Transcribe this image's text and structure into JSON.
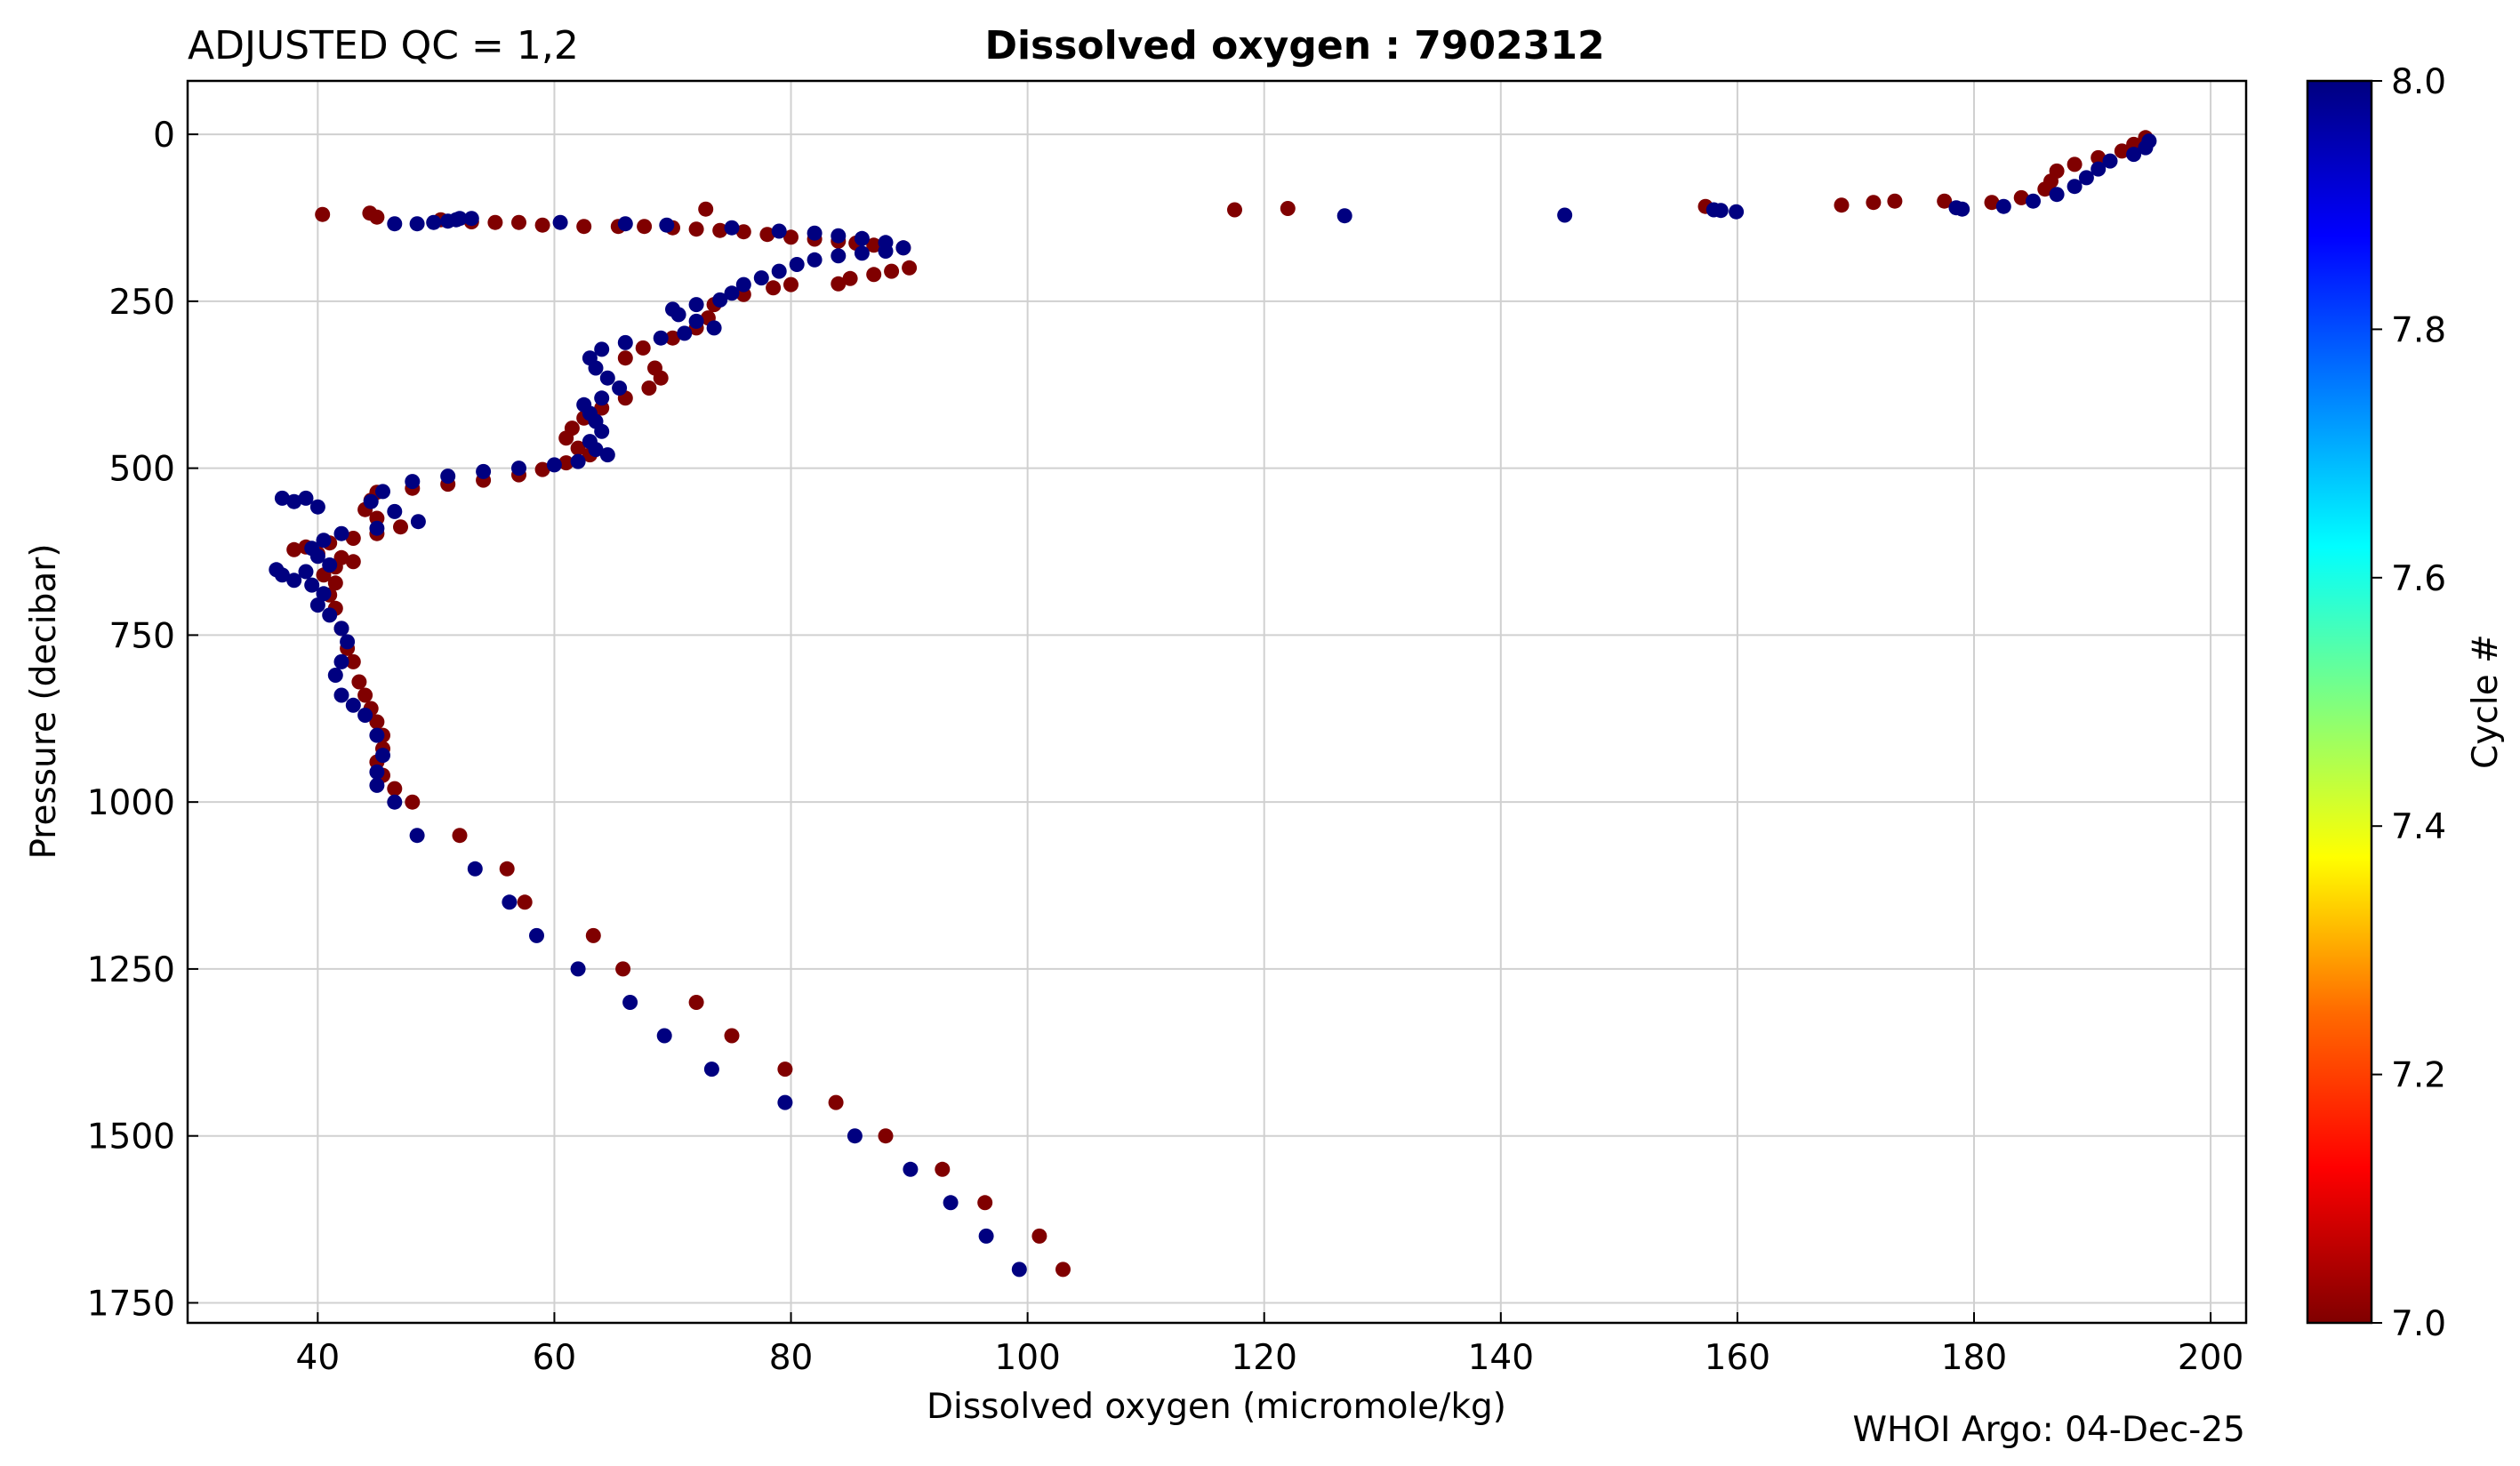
{
  "header": {
    "qc_label": "ADJUSTED QC = 1,2",
    "title": "Dissolved oxygen : 7902312"
  },
  "footer": {
    "credit": "WHOI Argo: 04-Dec-25"
  },
  "colorbar": {
    "label": "Cycle #",
    "min": 7.0,
    "max": 8.0,
    "ticks": [
      "7.0",
      "7.2",
      "7.4",
      "7.6",
      "7.8",
      "8.0"
    ],
    "colormap": "jet"
  },
  "chart_data": {
    "type": "scatter",
    "xlabel": "Dissolved oxygen  (micromole/kg)",
    "ylabel": "Pressure  (decibar)",
    "xlim": [
      29,
      203
    ],
    "ylim": [
      1780,
      -80
    ],
    "y_inverted": true,
    "x_ticks": [
      40,
      60,
      80,
      100,
      120,
      140,
      160,
      180,
      200
    ],
    "y_ticks": [
      0,
      250,
      500,
      750,
      1000,
      1250,
      1500,
      1750
    ],
    "grid": true,
    "series": [
      {
        "cycle": 7,
        "color": "#800000",
        "points": [
          [
            194.5,
            5
          ],
          [
            193.5,
            15
          ],
          [
            192.5,
            25
          ],
          [
            190.5,
            35
          ],
          [
            188.5,
            45
          ],
          [
            187.0,
            55
          ],
          [
            186.5,
            70
          ],
          [
            186.0,
            82
          ],
          [
            184.0,
            95
          ],
          [
            181.5,
            102
          ],
          [
            177.5,
            100
          ],
          [
            173.3,
            100
          ],
          [
            171.5,
            102
          ],
          [
            168.8,
            106
          ],
          [
            157.3,
            108
          ],
          [
            122.0,
            111
          ],
          [
            117.5,
            113
          ],
          [
            72.8,
            112
          ],
          [
            40.4,
            120
          ],
          [
            44.4,
            118
          ],
          [
            45.0,
            124
          ],
          [
            50.4,
            128
          ],
          [
            53.0,
            131
          ],
          [
            55.0,
            132
          ],
          [
            57.0,
            132
          ],
          [
            59.0,
            136
          ],
          [
            62.5,
            138
          ],
          [
            65.4,
            138
          ],
          [
            67.6,
            138
          ],
          [
            70.0,
            140
          ],
          [
            72.0,
            142
          ],
          [
            74.0,
            144
          ],
          [
            76.0,
            146
          ],
          [
            78.0,
            150
          ],
          [
            80.0,
            154
          ],
          [
            82.0,
            157
          ],
          [
            84.0,
            160
          ],
          [
            85.5,
            163
          ],
          [
            87.0,
            166
          ],
          [
            89.5,
            170
          ],
          [
            90.0,
            200
          ],
          [
            88.5,
            205
          ],
          [
            87.0,
            210
          ],
          [
            85.0,
            216
          ],
          [
            84.0,
            224
          ],
          [
            80.0,
            225
          ],
          [
            78.5,
            230
          ],
          [
            76.0,
            240
          ],
          [
            73.5,
            255
          ],
          [
            73.0,
            275
          ],
          [
            72.0,
            290
          ],
          [
            70.0,
            305
          ],
          [
            67.5,
            320
          ],
          [
            66.0,
            335
          ],
          [
            68.5,
            350
          ],
          [
            69.0,
            365
          ],
          [
            68.0,
            380
          ],
          [
            66.0,
            395
          ],
          [
            64.0,
            410
          ],
          [
            62.5,
            425
          ],
          [
            61.5,
            440
          ],
          [
            61.0,
            455
          ],
          [
            62.0,
            470
          ],
          [
            63.0,
            480
          ],
          [
            61.0,
            492
          ],
          [
            59.0,
            502
          ],
          [
            57.0,
            510
          ],
          [
            54.0,
            518
          ],
          [
            51.0,
            524
          ],
          [
            48.0,
            530
          ],
          [
            45.0,
            536
          ],
          [
            44.5,
            548
          ],
          [
            44.0,
            562
          ],
          [
            45.0,
            575
          ],
          [
            47.0,
            588
          ],
          [
            45.0,
            598
          ],
          [
            43.0,
            605
          ],
          [
            41.0,
            612
          ],
          [
            39.0,
            618
          ],
          [
            38.0,
            622
          ],
          [
            40.0,
            628
          ],
          [
            42.0,
            634
          ],
          [
            43.0,
            640
          ],
          [
            41.5,
            648
          ],
          [
            40.5,
            660
          ],
          [
            41.5,
            672
          ],
          [
            41.0,
            690
          ],
          [
            41.5,
            710
          ],
          [
            42.0,
            740
          ],
          [
            42.5,
            770
          ],
          [
            43.0,
            790
          ],
          [
            43.5,
            820
          ],
          [
            44.0,
            840
          ],
          [
            44.5,
            860
          ],
          [
            45.0,
            880
          ],
          [
            45.5,
            900
          ],
          [
            45.5,
            920
          ],
          [
            45.0,
            940
          ],
          [
            45.5,
            960
          ],
          [
            46.5,
            980
          ],
          [
            48.0,
            1000
          ],
          [
            52.0,
            1050
          ],
          [
            56.0,
            1100
          ],
          [
            57.5,
            1150
          ],
          [
            63.3,
            1200
          ],
          [
            65.8,
            1250
          ],
          [
            72.0,
            1300
          ],
          [
            75.0,
            1350
          ],
          [
            79.5,
            1400
          ],
          [
            83.8,
            1450
          ],
          [
            88.0,
            1500
          ],
          [
            92.8,
            1550
          ],
          [
            96.4,
            1600
          ],
          [
            101.0,
            1650
          ],
          [
            103.0,
            1700
          ]
        ]
      },
      {
        "cycle": 8,
        "color": "#000080",
        "points": [
          [
            194.8,
            10
          ],
          [
            194.5,
            20
          ],
          [
            193.5,
            30
          ],
          [
            191.5,
            40
          ],
          [
            190.5,
            52
          ],
          [
            189.5,
            65
          ],
          [
            188.5,
            78
          ],
          [
            187.0,
            90
          ],
          [
            185.0,
            100
          ],
          [
            182.5,
            108
          ],
          [
            179.0,
            112
          ],
          [
            178.5,
            110
          ],
          [
            159.9,
            116
          ],
          [
            158.6,
            114
          ],
          [
            158.0,
            113
          ],
          [
            145.4,
            121
          ],
          [
            126.8,
            122
          ],
          [
            53.0,
            126
          ],
          [
            51.0,
            130
          ],
          [
            49.8,
            132
          ],
          [
            48.4,
            134
          ],
          [
            46.5,
            134
          ],
          [
            51.7,
            128
          ],
          [
            52.0,
            126
          ],
          [
            60.5,
            132
          ],
          [
            66.0,
            134
          ],
          [
            69.5,
            136
          ],
          [
            75.0,
            140
          ],
          [
            79.0,
            145
          ],
          [
            82.0,
            148
          ],
          [
            84.0,
            152
          ],
          [
            86.0,
            156
          ],
          [
            88.0,
            162
          ],
          [
            89.5,
            170
          ],
          [
            88.0,
            175
          ],
          [
            86.0,
            178
          ],
          [
            84.0,
            182
          ],
          [
            82.0,
            188
          ],
          [
            80.5,
            195
          ],
          [
            79.0,
            205
          ],
          [
            77.5,
            215
          ],
          [
            76.0,
            225
          ],
          [
            75.0,
            238
          ],
          [
            74.0,
            248
          ],
          [
            72.0,
            255
          ],
          [
            70.0,
            262
          ],
          [
            70.5,
            270
          ],
          [
            72.0,
            280
          ],
          [
            73.5,
            290
          ],
          [
            71.0,
            298
          ],
          [
            69.0,
            305
          ],
          [
            66.0,
            312
          ],
          [
            64.0,
            322
          ],
          [
            63.0,
            335
          ],
          [
            63.5,
            350
          ],
          [
            64.5,
            365
          ],
          [
            65.5,
            380
          ],
          [
            64.0,
            395
          ],
          [
            62.5,
            405
          ],
          [
            63.0,
            418
          ],
          [
            63.5,
            430
          ],
          [
            64.0,
            445
          ],
          [
            63.0,
            460
          ],
          [
            63.5,
            472
          ],
          [
            64.5,
            480
          ],
          [
            62.0,
            490
          ],
          [
            60.0,
            495
          ],
          [
            57.0,
            500
          ],
          [
            54.0,
            505
          ],
          [
            51.0,
            512
          ],
          [
            48.0,
            520
          ],
          [
            45.5,
            535
          ],
          [
            44.5,
            550
          ],
          [
            46.5,
            565
          ],
          [
            48.5,
            580
          ],
          [
            45.0,
            590
          ],
          [
            42.0,
            598
          ],
          [
            40.5,
            608
          ],
          [
            39.5,
            620
          ],
          [
            40.0,
            632
          ],
          [
            41.0,
            645
          ],
          [
            39.0,
            655
          ],
          [
            37.0,
            660
          ],
          [
            38.0,
            668
          ],
          [
            39.5,
            675
          ],
          [
            40.5,
            688
          ],
          [
            40.0,
            705
          ],
          [
            41.0,
            720
          ],
          [
            42.0,
            740
          ],
          [
            42.5,
            760
          ],
          [
            42.0,
            790
          ],
          [
            41.5,
            810
          ],
          [
            42.0,
            840
          ],
          [
            43.0,
            855
          ],
          [
            44.0,
            870
          ],
          [
            45.0,
            900
          ],
          [
            45.5,
            930
          ],
          [
            45.0,
            955
          ],
          [
            45.0,
            975
          ],
          [
            46.5,
            1000
          ],
          [
            48.4,
            1050
          ],
          [
            53.3,
            1100
          ],
          [
            56.2,
            1150
          ],
          [
            58.5,
            1200
          ],
          [
            62.0,
            1250
          ],
          [
            66.4,
            1300
          ],
          [
            69.3,
            1350
          ],
          [
            73.3,
            1400
          ],
          [
            79.5,
            1450
          ],
          [
            85.4,
            1500
          ],
          [
            90.1,
            1550
          ],
          [
            93.5,
            1600
          ],
          [
            96.5,
            1650
          ],
          [
            99.3,
            1700
          ],
          [
            37.0,
            545
          ],
          [
            38.0,
            550
          ],
          [
            36.5,
            652
          ],
          [
            39.0,
            545
          ],
          [
            40.0,
            558
          ]
        ]
      }
    ]
  }
}
